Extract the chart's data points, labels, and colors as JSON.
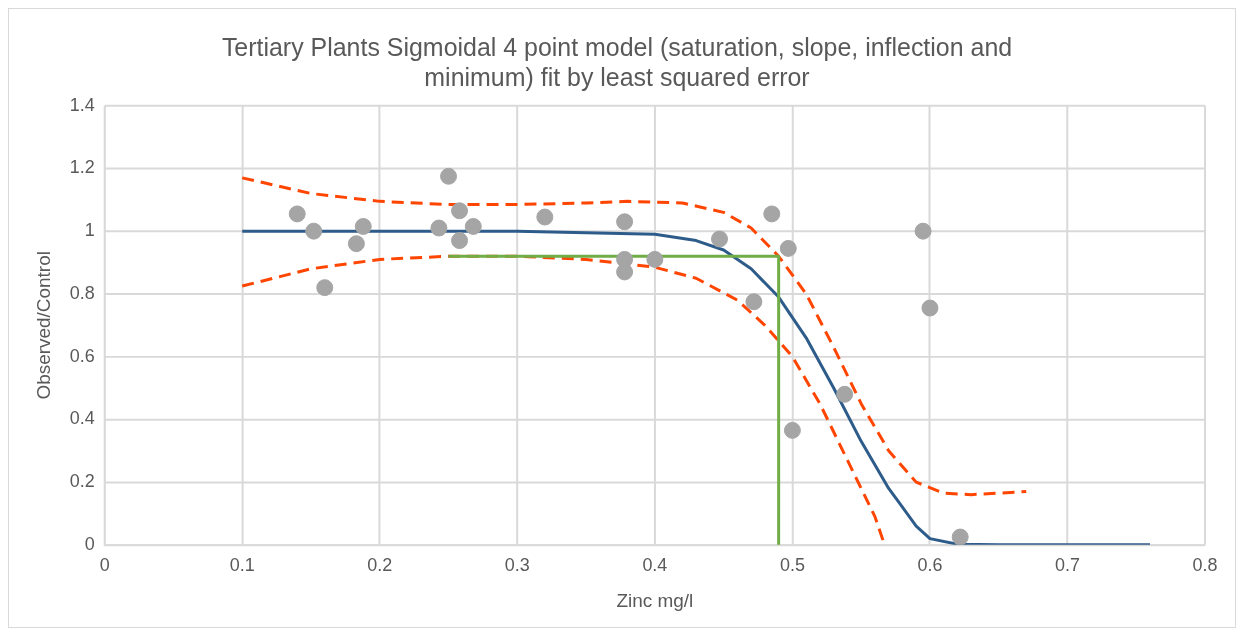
{
  "chart_data": {
    "type": "scatter",
    "title": "Tertiary Plants Sigmoidal 4 point model (saturation, slope, inflection and minimum) fit by least squared error",
    "xlabel": "Zinc mg/l",
    "ylabel": "Observed/Control",
    "xlim": [
      0,
      0.8
    ],
    "xticks": [
      0,
      0.1,
      0.2,
      0.3,
      0.4,
      0.5,
      0.6,
      0.7,
      0.8
    ],
    "ylim": [
      0,
      1.4
    ],
    "yticks": [
      0,
      0.2,
      0.4,
      0.6,
      0.8,
      1,
      1.2,
      1.4
    ],
    "grid": true,
    "legend": false,
    "series": [
      {
        "type": "line",
        "color": "#70ad47",
        "line_style": "solid",
        "x": [
          0.25,
          0.49,
          0.49
        ],
        "values": [
          0.92,
          0.92,
          0
        ]
      },
      {
        "type": "line",
        "color": "#ff4500",
        "line_style": "dashed",
        "x": [
          0.1,
          0.15,
          0.2,
          0.25,
          0.3,
          0.35,
          0.38,
          0.42,
          0.45,
          0.47,
          0.49,
          0.51,
          0.53,
          0.55,
          0.57,
          0.59,
          0.61,
          0.63,
          0.67
        ],
        "values": [
          1.17,
          1.12,
          1.095,
          1.085,
          1.085,
          1.09,
          1.095,
          1.09,
          1.06,
          1.01,
          0.92,
          0.8,
          0.63,
          0.45,
          0.3,
          0.2,
          0.165,
          0.16,
          0.17
        ]
      },
      {
        "type": "line",
        "color": "#ff4500",
        "line_style": "dashed",
        "x": [
          0.1,
          0.15,
          0.2,
          0.25,
          0.3,
          0.35,
          0.4,
          0.43,
          0.46,
          0.48,
          0.5,
          0.52,
          0.54,
          0.56,
          0.567
        ],
        "values": [
          0.825,
          0.88,
          0.91,
          0.92,
          0.92,
          0.91,
          0.885,
          0.85,
          0.78,
          0.7,
          0.6,
          0.45,
          0.27,
          0.09,
          0
        ]
      },
      {
        "type": "line",
        "color": "#2e5c8a",
        "line_style": "solid",
        "x": [
          0.1,
          0.2,
          0.3,
          0.35,
          0.4,
          0.43,
          0.45,
          0.47,
          0.49,
          0.51,
          0.53,
          0.55,
          0.57,
          0.58,
          0.59,
          0.6,
          0.62,
          0.65,
          0.76
        ],
        "values": [
          1,
          1,
          1,
          0.995,
          0.99,
          0.97,
          0.94,
          0.88,
          0.79,
          0.66,
          0.5,
          0.33,
          0.18,
          0.12,
          0.06,
          0.02,
          0.002,
          0,
          0
        ]
      },
      {
        "type": "scatter",
        "color": "#a5a5a5",
        "marker": "circle",
        "x": [
          0.14,
          0.152,
          0.16,
          0.183,
          0.188,
          0.243,
          0.25,
          0.258,
          0.258,
          0.268,
          0.32,
          0.378,
          0.378,
          0.378,
          0.4,
          0.447,
          0.472,
          0.485,
          0.497,
          0.5,
          0.538,
          0.595,
          0.6,
          0.622
        ],
        "values": [
          1.055,
          1.0,
          0.82,
          0.96,
          1.015,
          1.01,
          1.175,
          1.065,
          0.97,
          1.015,
          1.045,
          1.03,
          0.91,
          0.87,
          0.91,
          0.975,
          0.775,
          1.055,
          0.945,
          0.365,
          0.48,
          1.0,
          0.755,
          0.025
        ]
      }
    ]
  }
}
